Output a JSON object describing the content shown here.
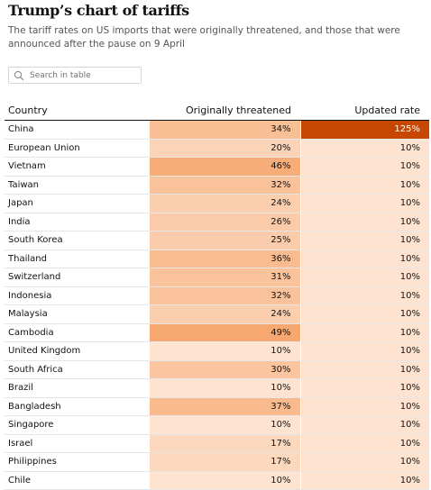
{
  "header": {
    "title": "Trump’s chart of tariffs",
    "subtitle": "The tariff rates on US imports that were originally threatened, and those that were announced after the pause on 9 April"
  },
  "search": {
    "placeholder": "Search in table",
    "icon": "search-icon"
  },
  "table": {
    "columns": [
      "Country",
      "Originally threatened",
      "Updated rate"
    ],
    "rows": [
      {
        "country": "China",
        "threatened": "34%",
        "updated": "125%"
      },
      {
        "country": "European Union",
        "threatened": "20%",
        "updated": "10%"
      },
      {
        "country": "Vietnam",
        "threatened": "46%",
        "updated": "10%"
      },
      {
        "country": "Taiwan",
        "threatened": "32%",
        "updated": "10%"
      },
      {
        "country": "Japan",
        "threatened": "24%",
        "updated": "10%"
      },
      {
        "country": "India",
        "threatened": "26%",
        "updated": "10%"
      },
      {
        "country": "South Korea",
        "threatened": "25%",
        "updated": "10%"
      },
      {
        "country": "Thailand",
        "threatened": "36%",
        "updated": "10%"
      },
      {
        "country": "Switzerland",
        "threatened": "31%",
        "updated": "10%"
      },
      {
        "country": "Indonesia",
        "threatened": "32%",
        "updated": "10%"
      },
      {
        "country": "Malaysia",
        "threatened": "24%",
        "updated": "10%"
      },
      {
        "country": "Cambodia",
        "threatened": "49%",
        "updated": "10%"
      },
      {
        "country": "United Kingdom",
        "threatened": "10%",
        "updated": "10%"
      },
      {
        "country": "South Africa",
        "threatened": "30%",
        "updated": "10%"
      },
      {
        "country": "Brazil",
        "threatened": "10%",
        "updated": "10%"
      },
      {
        "country": "Bangladesh",
        "threatened": "37%",
        "updated": "10%"
      },
      {
        "country": "Singapore",
        "threatened": "10%",
        "updated": "10%"
      },
      {
        "country": "Israel",
        "threatened": "17%",
        "updated": "10%"
      },
      {
        "country": "Philippines",
        "threatened": "17%",
        "updated": "10%"
      },
      {
        "country": "Chile",
        "threatened": "10%",
        "updated": "10%"
      }
    ]
  },
  "colors": {
    "scale_low": "#fde3d0",
    "scale_high": "#f7a870",
    "extreme": "#c74600",
    "extreme_text": "#ffffff"
  }
}
